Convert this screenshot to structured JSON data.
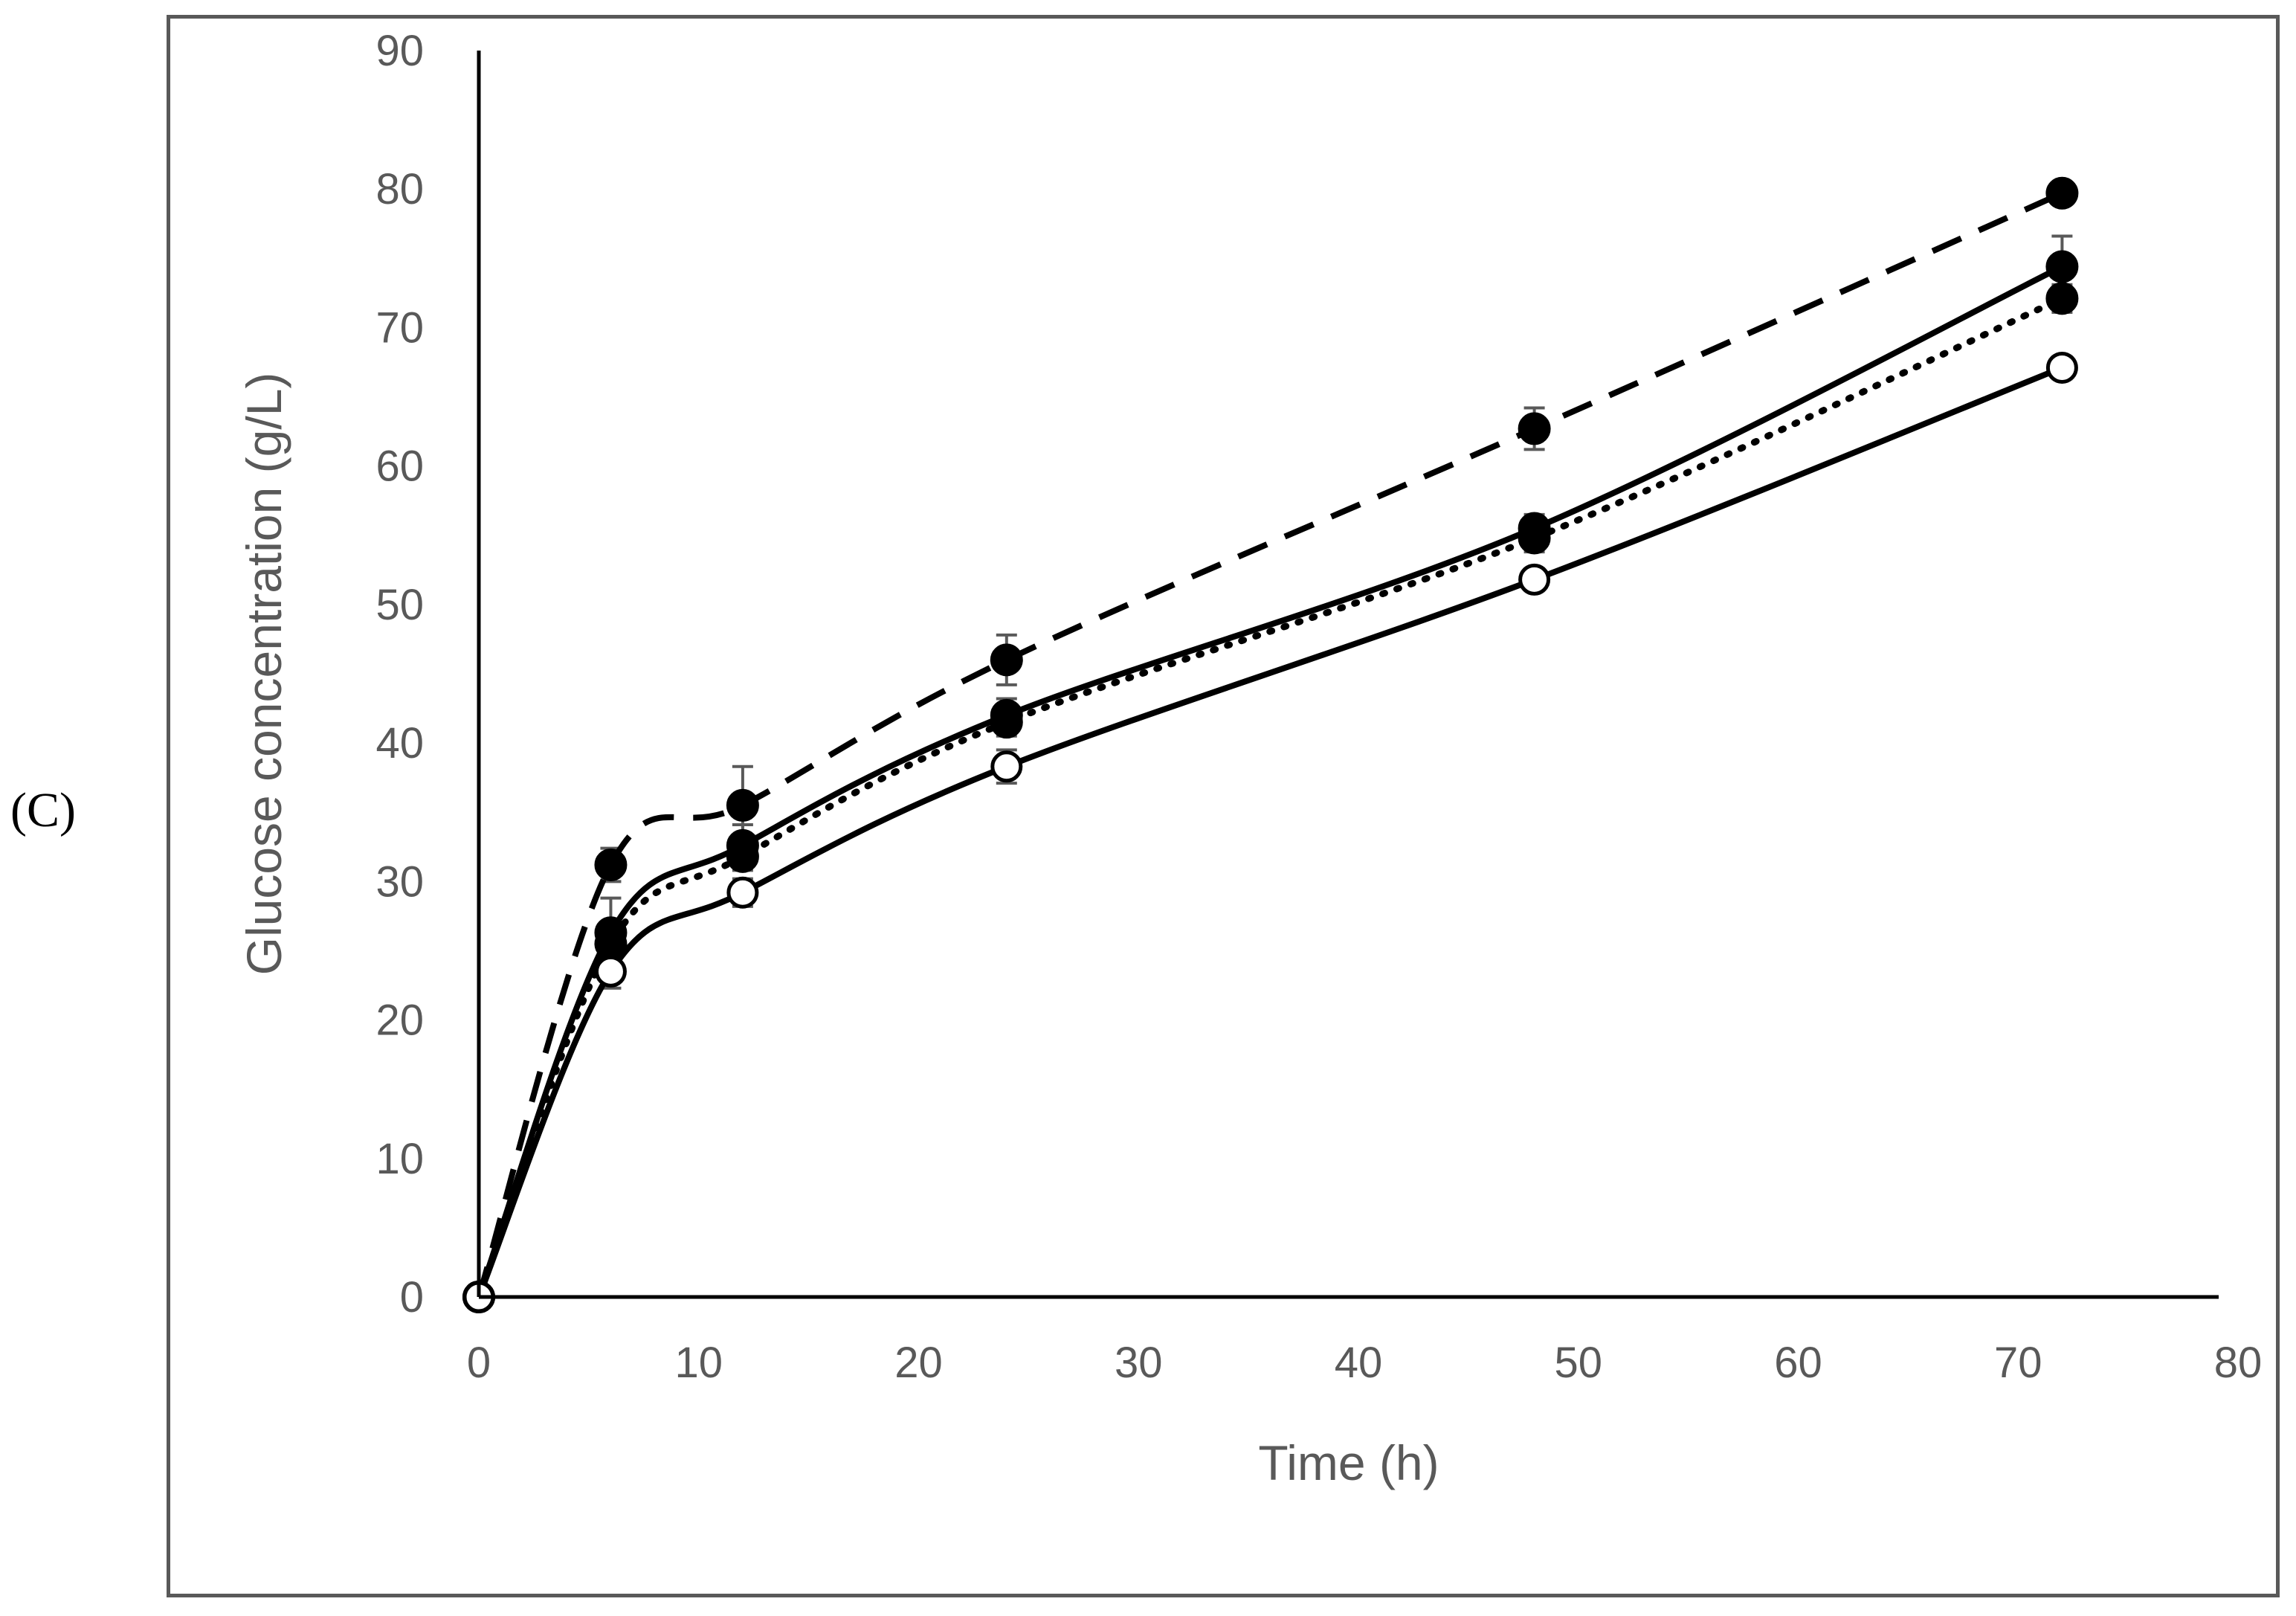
{
  "panel_label": "(C)",
  "chart_data": {
    "type": "line",
    "title": "",
    "xlabel": "Time (h)",
    "ylabel": "Glucose concentration (g/L)",
    "xlim": [
      0,
      80
    ],
    "ylim": [
      0,
      90
    ],
    "x_ticks": [
      0,
      10,
      20,
      30,
      40,
      50,
      60,
      70,
      80
    ],
    "y_ticks": [
      0,
      10,
      20,
      30,
      40,
      50,
      60,
      70,
      80,
      90
    ],
    "x_tick_labels": [
      "0",
      "10",
      "20",
      "30",
      "40",
      "50",
      "60",
      "70",
      "80"
    ],
    "y_tick_labels": [
      "0",
      "10",
      "20",
      "30",
      "40",
      "50",
      "60",
      "70",
      "80",
      "90"
    ],
    "grid": false,
    "legend": "none",
    "x": [
      0,
      6,
      12,
      24,
      48,
      72
    ],
    "series": [
      {
        "name": "dashed-filled",
        "line": "dashed",
        "marker": "filled",
        "values": [
          0,
          31.2,
          35.5,
          46,
          62.7,
          79.7
        ],
        "errors": [
          0,
          1.2,
          2.8,
          1.8,
          1.5,
          0.8
        ]
      },
      {
        "name": "solid-filled",
        "line": "solid",
        "marker": "filled",
        "values": [
          0,
          26.3,
          32.6,
          42,
          55.5,
          74.4
        ],
        "errors": [
          0,
          2.5,
          1.5,
          1.2,
          1.0,
          2.2
        ]
      },
      {
        "name": "dotted-filled",
        "line": "dotted",
        "marker": "filled",
        "values": [
          0,
          25.5,
          31.8,
          41.5,
          54.8,
          72.1
        ],
        "errors": [
          0,
          1.0,
          1.0,
          1.0,
          1.0,
          1.0
        ]
      },
      {
        "name": "solid-open",
        "line": "solid",
        "marker": "open",
        "values": [
          0,
          23.5,
          29.2,
          38.3,
          51.8,
          67.1
        ],
        "errors": [
          0,
          1.2,
          1.0,
          1.2,
          0.8,
          0.8
        ]
      }
    ]
  }
}
